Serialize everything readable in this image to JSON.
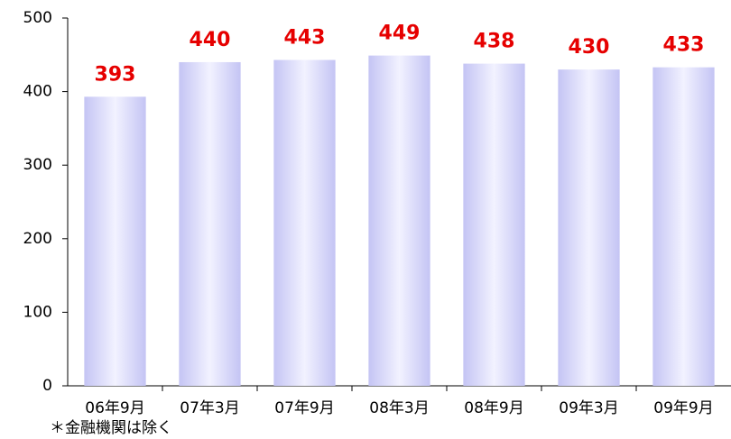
{
  "chart_data": {
    "type": "bar",
    "categories": [
      "06年9月",
      "07年3月",
      "07年9月",
      "08年3月",
      "08年9月",
      "09年3月",
      "09年9月"
    ],
    "values": [
      393,
      440,
      443,
      449,
      438,
      430,
      433
    ],
    "color": "#c4c4f4",
    "label_color": "#e60000",
    "ylim": [
      0,
      500
    ],
    "yticks": [
      0,
      100,
      200,
      300,
      400,
      500
    ],
    "grid": false,
    "note": "＊金融機関は除く"
  }
}
